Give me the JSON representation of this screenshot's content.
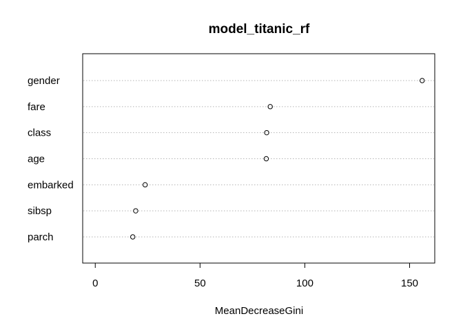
{
  "chart_data": {
    "type": "scatter",
    "subtype": "dotchart",
    "title": "model_titanic_rf",
    "xlabel": "MeanDecreaseGini",
    "ylabel": "",
    "categories": [
      "gender",
      "fare",
      "class",
      "age",
      "embarked",
      "sibsp",
      "parch"
    ],
    "values": [
      156,
      83.5,
      81.8,
      81.6,
      23.8,
      19.3,
      17.9
    ],
    "xlim": [
      -6,
      162
    ],
    "xticks": [
      0,
      50,
      100,
      150
    ],
    "xtick_labels": [
      "0",
      "50",
      "100",
      "150"
    ],
    "grid": "dotted horizontal guide lines per category",
    "legend": "none",
    "marker": "open-circle"
  }
}
